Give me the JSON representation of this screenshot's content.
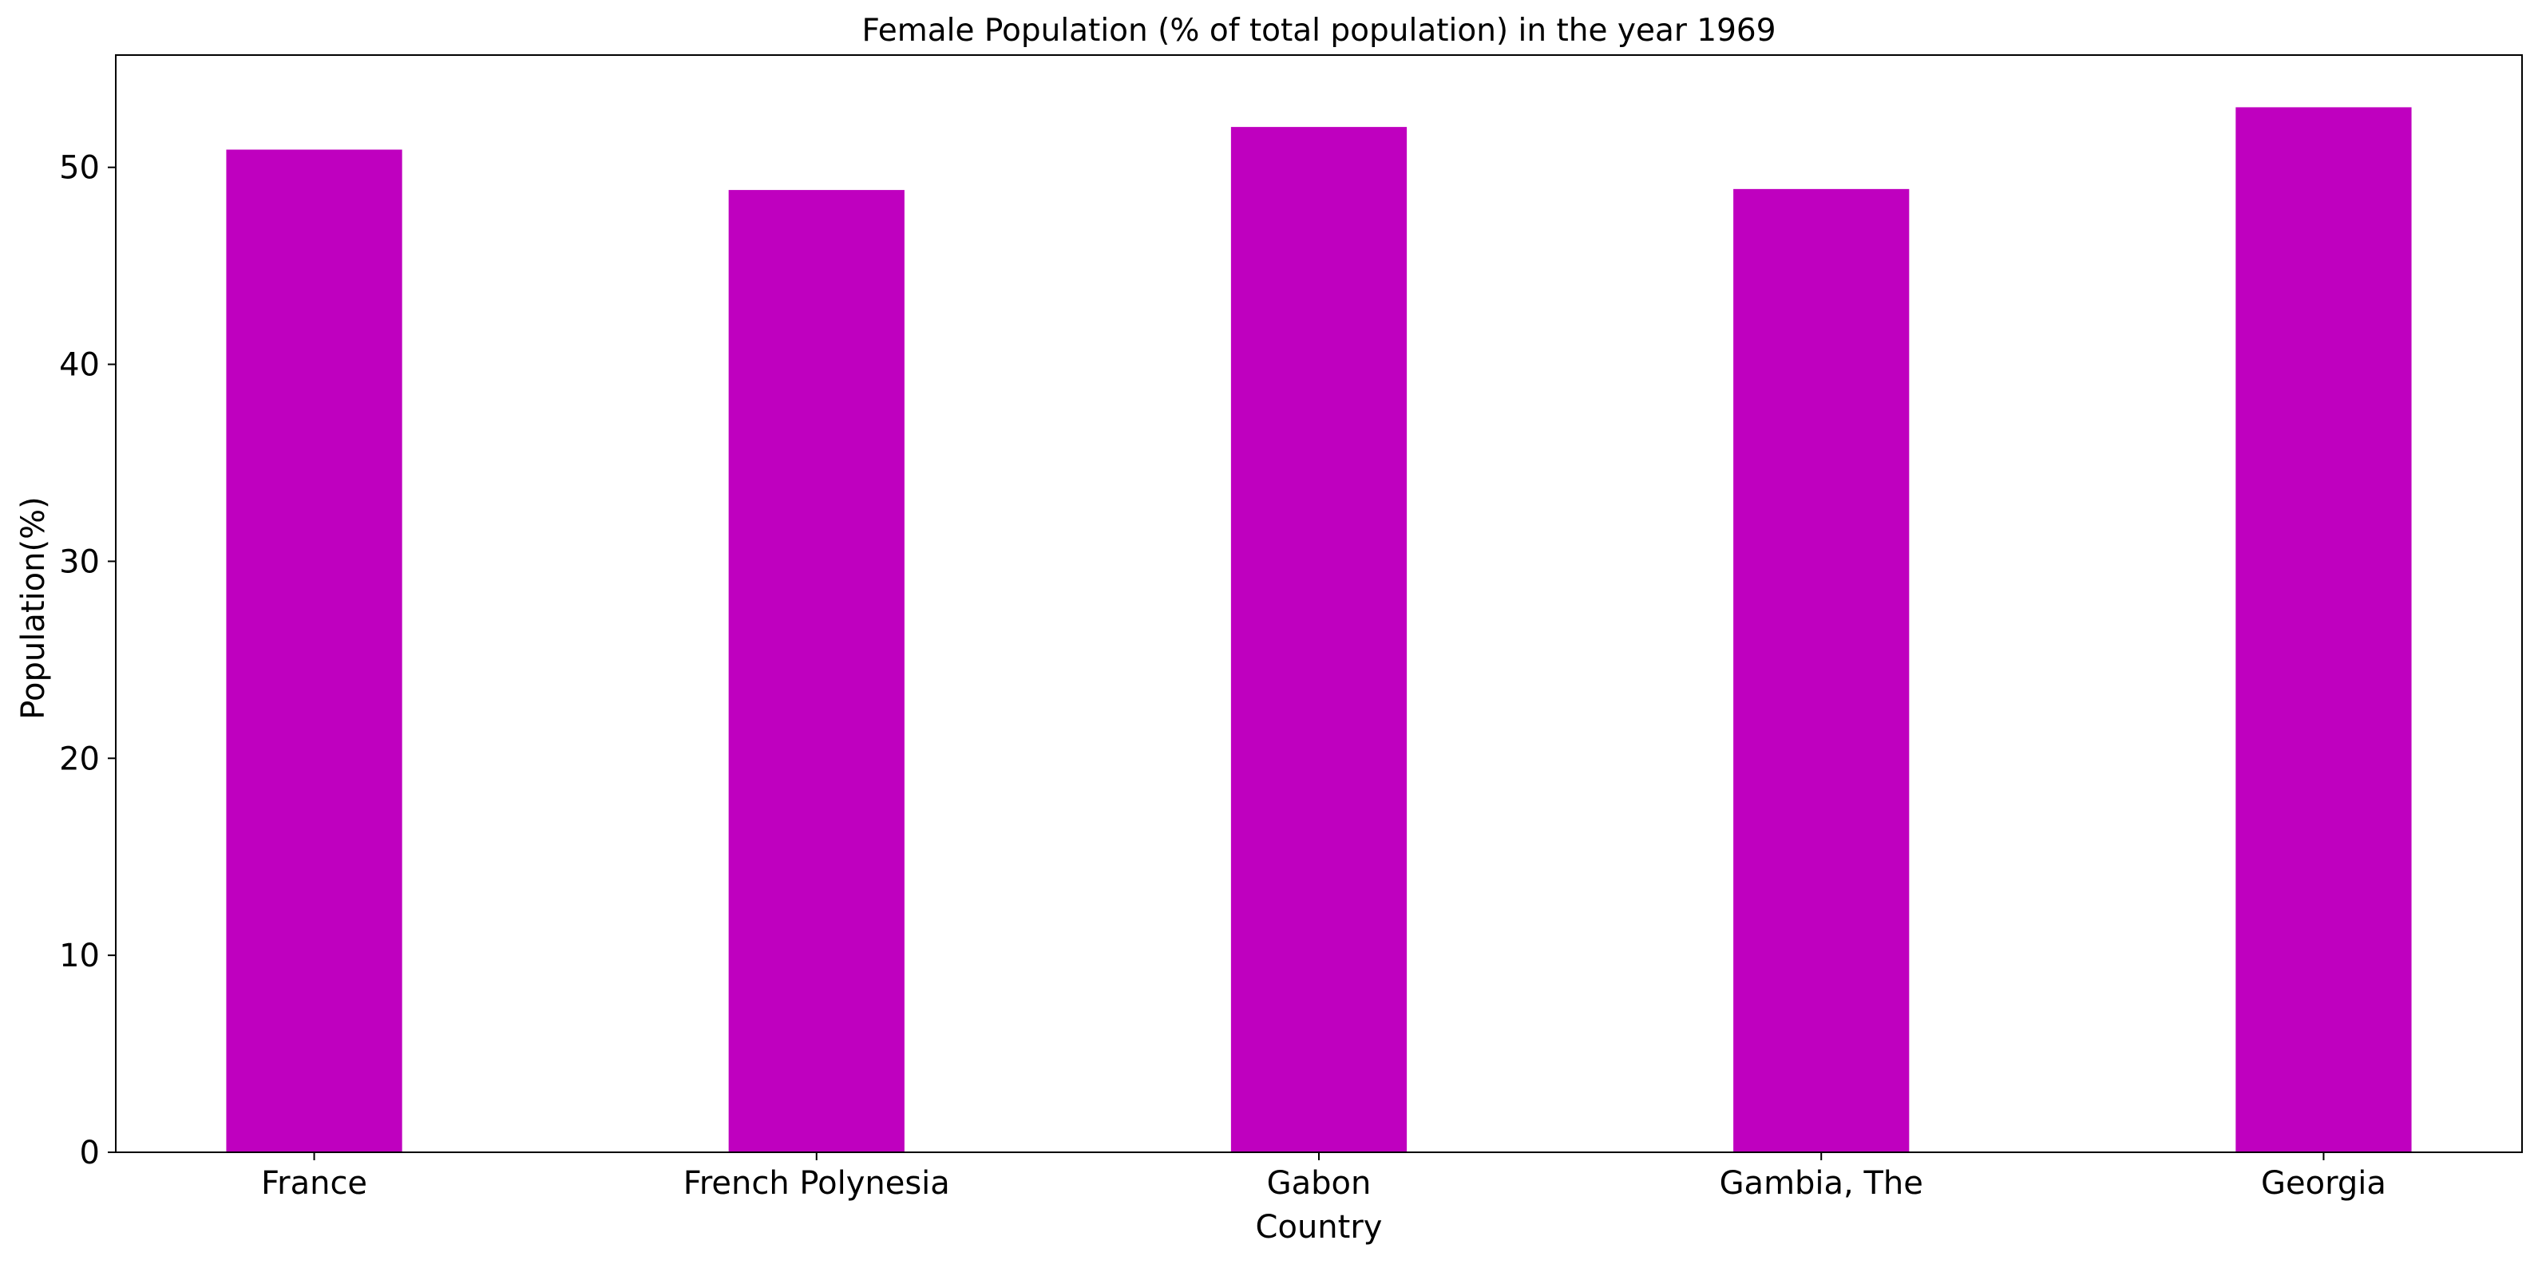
{
  "chart_data": {
    "type": "bar",
    "title": "Female Population (% of total population) in the year 1969",
    "xlabel": "Country",
    "ylabel": "Population(%)",
    "categories": [
      "France",
      "French Polynesia",
      "Gabon",
      "Gambia, The",
      "Georgia"
    ],
    "values": [
      50.9,
      48.85,
      52.05,
      48.9,
      53.05
    ],
    "ylim": [
      0,
      55.7
    ],
    "yticks": [
      "0",
      "10",
      "20",
      "30",
      "40",
      "50"
    ],
    "bar_color": "#bf00bf",
    "grid": false,
    "legend": "none"
  }
}
